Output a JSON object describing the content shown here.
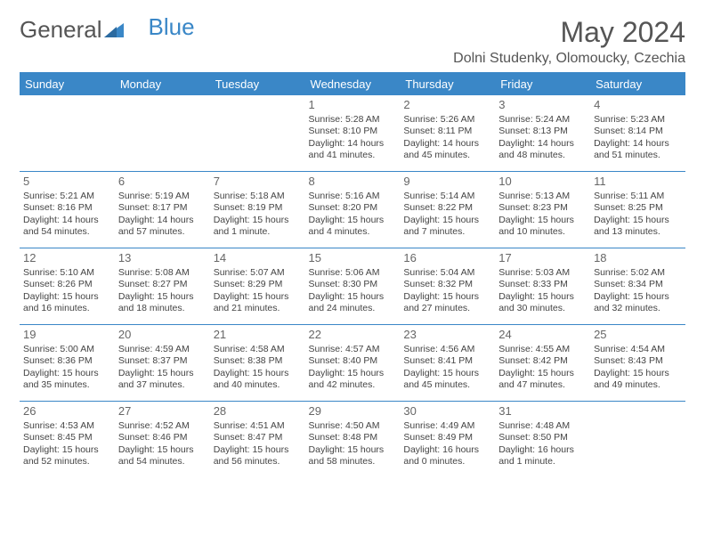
{
  "brand": {
    "word1": "General",
    "word2": "Blue"
  },
  "title": "May 2024",
  "location": "Dolni Studenky, Olomoucky, Czechia",
  "colors": {
    "accent": "#3a87c7",
    "text": "#444444",
    "heading": "#555555",
    "background": "#ffffff"
  },
  "typography": {
    "title_fontsize": 32,
    "location_fontsize": 16,
    "dayheader_fontsize": 13,
    "daynum_fontsize": 13,
    "body_fontsize": 10.5
  },
  "day_headers": [
    "Sunday",
    "Monday",
    "Tuesday",
    "Wednesday",
    "Thursday",
    "Friday",
    "Saturday"
  ],
  "weeks": [
    [
      {},
      {},
      {},
      {
        "num": "1",
        "sunrise": "Sunrise: 5:28 AM",
        "sunset": "Sunset: 8:10 PM",
        "daylight": "Daylight: 14 hours and 41 minutes."
      },
      {
        "num": "2",
        "sunrise": "Sunrise: 5:26 AM",
        "sunset": "Sunset: 8:11 PM",
        "daylight": "Daylight: 14 hours and 45 minutes."
      },
      {
        "num": "3",
        "sunrise": "Sunrise: 5:24 AM",
        "sunset": "Sunset: 8:13 PM",
        "daylight": "Daylight: 14 hours and 48 minutes."
      },
      {
        "num": "4",
        "sunrise": "Sunrise: 5:23 AM",
        "sunset": "Sunset: 8:14 PM",
        "daylight": "Daylight: 14 hours and 51 minutes."
      }
    ],
    [
      {
        "num": "5",
        "sunrise": "Sunrise: 5:21 AM",
        "sunset": "Sunset: 8:16 PM",
        "daylight": "Daylight: 14 hours and 54 minutes."
      },
      {
        "num": "6",
        "sunrise": "Sunrise: 5:19 AM",
        "sunset": "Sunset: 8:17 PM",
        "daylight": "Daylight: 14 hours and 57 minutes."
      },
      {
        "num": "7",
        "sunrise": "Sunrise: 5:18 AM",
        "sunset": "Sunset: 8:19 PM",
        "daylight": "Daylight: 15 hours and 1 minute."
      },
      {
        "num": "8",
        "sunrise": "Sunrise: 5:16 AM",
        "sunset": "Sunset: 8:20 PM",
        "daylight": "Daylight: 15 hours and 4 minutes."
      },
      {
        "num": "9",
        "sunrise": "Sunrise: 5:14 AM",
        "sunset": "Sunset: 8:22 PM",
        "daylight": "Daylight: 15 hours and 7 minutes."
      },
      {
        "num": "10",
        "sunrise": "Sunrise: 5:13 AM",
        "sunset": "Sunset: 8:23 PM",
        "daylight": "Daylight: 15 hours and 10 minutes."
      },
      {
        "num": "11",
        "sunrise": "Sunrise: 5:11 AM",
        "sunset": "Sunset: 8:25 PM",
        "daylight": "Daylight: 15 hours and 13 minutes."
      }
    ],
    [
      {
        "num": "12",
        "sunrise": "Sunrise: 5:10 AM",
        "sunset": "Sunset: 8:26 PM",
        "daylight": "Daylight: 15 hours and 16 minutes."
      },
      {
        "num": "13",
        "sunrise": "Sunrise: 5:08 AM",
        "sunset": "Sunset: 8:27 PM",
        "daylight": "Daylight: 15 hours and 18 minutes."
      },
      {
        "num": "14",
        "sunrise": "Sunrise: 5:07 AM",
        "sunset": "Sunset: 8:29 PM",
        "daylight": "Daylight: 15 hours and 21 minutes."
      },
      {
        "num": "15",
        "sunrise": "Sunrise: 5:06 AM",
        "sunset": "Sunset: 8:30 PM",
        "daylight": "Daylight: 15 hours and 24 minutes."
      },
      {
        "num": "16",
        "sunrise": "Sunrise: 5:04 AM",
        "sunset": "Sunset: 8:32 PM",
        "daylight": "Daylight: 15 hours and 27 minutes."
      },
      {
        "num": "17",
        "sunrise": "Sunrise: 5:03 AM",
        "sunset": "Sunset: 8:33 PM",
        "daylight": "Daylight: 15 hours and 30 minutes."
      },
      {
        "num": "18",
        "sunrise": "Sunrise: 5:02 AM",
        "sunset": "Sunset: 8:34 PM",
        "daylight": "Daylight: 15 hours and 32 minutes."
      }
    ],
    [
      {
        "num": "19",
        "sunrise": "Sunrise: 5:00 AM",
        "sunset": "Sunset: 8:36 PM",
        "daylight": "Daylight: 15 hours and 35 minutes."
      },
      {
        "num": "20",
        "sunrise": "Sunrise: 4:59 AM",
        "sunset": "Sunset: 8:37 PM",
        "daylight": "Daylight: 15 hours and 37 minutes."
      },
      {
        "num": "21",
        "sunrise": "Sunrise: 4:58 AM",
        "sunset": "Sunset: 8:38 PM",
        "daylight": "Daylight: 15 hours and 40 minutes."
      },
      {
        "num": "22",
        "sunrise": "Sunrise: 4:57 AM",
        "sunset": "Sunset: 8:40 PM",
        "daylight": "Daylight: 15 hours and 42 minutes."
      },
      {
        "num": "23",
        "sunrise": "Sunrise: 4:56 AM",
        "sunset": "Sunset: 8:41 PM",
        "daylight": "Daylight: 15 hours and 45 minutes."
      },
      {
        "num": "24",
        "sunrise": "Sunrise: 4:55 AM",
        "sunset": "Sunset: 8:42 PM",
        "daylight": "Daylight: 15 hours and 47 minutes."
      },
      {
        "num": "25",
        "sunrise": "Sunrise: 4:54 AM",
        "sunset": "Sunset: 8:43 PM",
        "daylight": "Daylight: 15 hours and 49 minutes."
      }
    ],
    [
      {
        "num": "26",
        "sunrise": "Sunrise: 4:53 AM",
        "sunset": "Sunset: 8:45 PM",
        "daylight": "Daylight: 15 hours and 52 minutes."
      },
      {
        "num": "27",
        "sunrise": "Sunrise: 4:52 AM",
        "sunset": "Sunset: 8:46 PM",
        "daylight": "Daylight: 15 hours and 54 minutes."
      },
      {
        "num": "28",
        "sunrise": "Sunrise: 4:51 AM",
        "sunset": "Sunset: 8:47 PM",
        "daylight": "Daylight: 15 hours and 56 minutes."
      },
      {
        "num": "29",
        "sunrise": "Sunrise: 4:50 AM",
        "sunset": "Sunset: 8:48 PM",
        "daylight": "Daylight: 15 hours and 58 minutes."
      },
      {
        "num": "30",
        "sunrise": "Sunrise: 4:49 AM",
        "sunset": "Sunset: 8:49 PM",
        "daylight": "Daylight: 16 hours and 0 minutes."
      },
      {
        "num": "31",
        "sunrise": "Sunrise: 4:48 AM",
        "sunset": "Sunset: 8:50 PM",
        "daylight": "Daylight: 16 hours and 1 minute."
      },
      {}
    ]
  ]
}
